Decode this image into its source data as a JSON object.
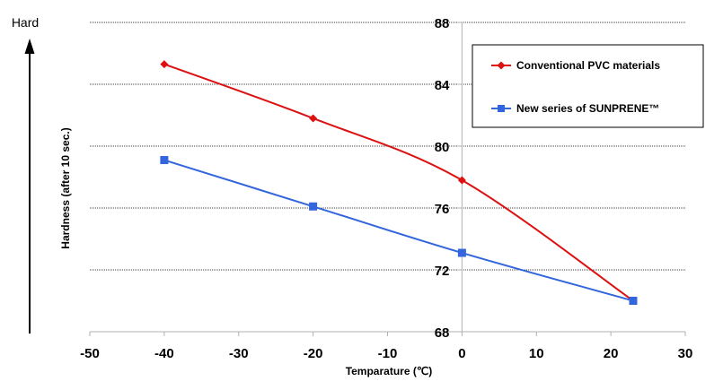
{
  "chart_data": {
    "type": "line",
    "title": "",
    "xlabel": "Temparature (℃)",
    "ylabel": "Hardness (after 10 sec.)",
    "hard_label": "Hard",
    "xlim": [
      -50,
      30
    ],
    "ylim": [
      68,
      88
    ],
    "x_ticks": [
      -50,
      -40,
      -30,
      -20,
      -10,
      0,
      10,
      20,
      30
    ],
    "y_ticks": [
      68,
      72,
      76,
      80,
      84,
      88
    ],
    "grid": "horizontal dotted",
    "legend_position": "top-right",
    "series": [
      {
        "name": "Conventional PVC materials",
        "color": "#dd1111",
        "marker": "diamond",
        "x": [
          -40,
          -20,
          0,
          23
        ],
        "y": [
          85.3,
          81.8,
          77.8,
          70.0
        ]
      },
      {
        "name": "New series of SUNPRENE™",
        "color": "#3366dd",
        "marker": "square",
        "x": [
          -40,
          -20,
          0,
          23
        ],
        "y": [
          79.1,
          76.1,
          73.1,
          70.0
        ]
      }
    ]
  }
}
